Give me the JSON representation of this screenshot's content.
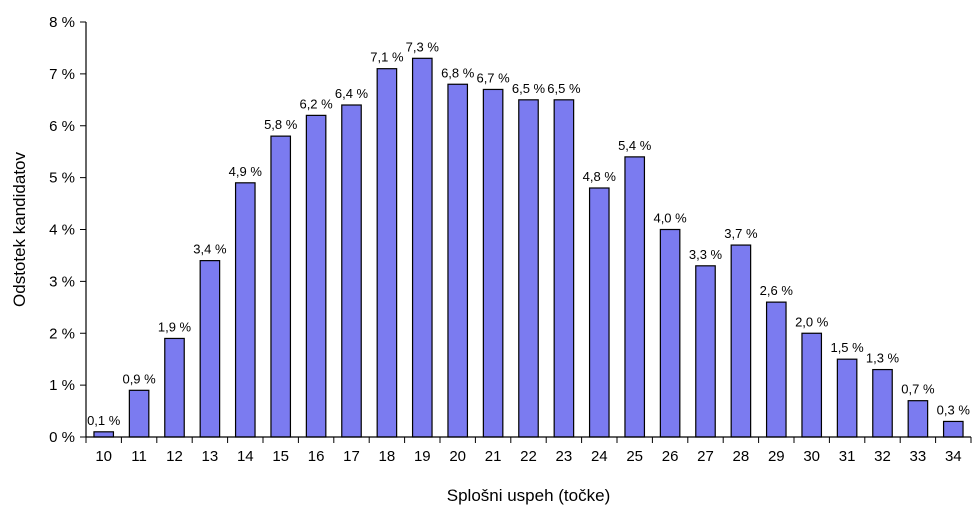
{
  "chart_data": {
    "type": "bar",
    "title": "",
    "xlabel": "Splošni uspeh (točke)",
    "ylabel": "Odstotek kandidatov",
    "categories": [
      "10",
      "11",
      "12",
      "13",
      "14",
      "15",
      "16",
      "17",
      "18",
      "19",
      "20",
      "21",
      "22",
      "23",
      "24",
      "25",
      "26",
      "27",
      "28",
      "29",
      "30",
      "31",
      "32",
      "33",
      "34"
    ],
    "values": [
      0.1,
      0.9,
      1.9,
      3.4,
      4.9,
      5.8,
      6.2,
      6.4,
      7.1,
      7.3,
      6.8,
      6.7,
      6.5,
      6.5,
      4.8,
      5.4,
      4.0,
      3.3,
      3.7,
      2.6,
      2.0,
      1.5,
      1.3,
      0.7,
      0.3
    ],
    "data_labels": [
      "0,1 %",
      "0,9 %",
      "1,9 %",
      "3,4 %",
      "4,9 %",
      "5,8 %",
      "6,2 %",
      "6,4 %",
      "7,1 %",
      "7,3 %",
      "6,8 %",
      "6,7 %",
      "6,5 %",
      "6,5 %",
      "4,8 %",
      "5,4 %",
      "4,0 %",
      "3,3 %",
      "3,7 %",
      "2,6 %",
      "2,0 %",
      "1,5 %",
      "1,3 %",
      "0,7 %",
      "0,3 %"
    ],
    "yticks": [
      0,
      1,
      2,
      3,
      4,
      5,
      6,
      7,
      8
    ],
    "ytick_labels": [
      "0 %",
      "1 %",
      "2 %",
      "3 %",
      "4 %",
      "5 %",
      "6 %",
      "7 %",
      "8 %"
    ],
    "ylim": [
      0,
      8
    ],
    "grid": false,
    "legend": "none",
    "bar_color": "#7B7BF0"
  }
}
